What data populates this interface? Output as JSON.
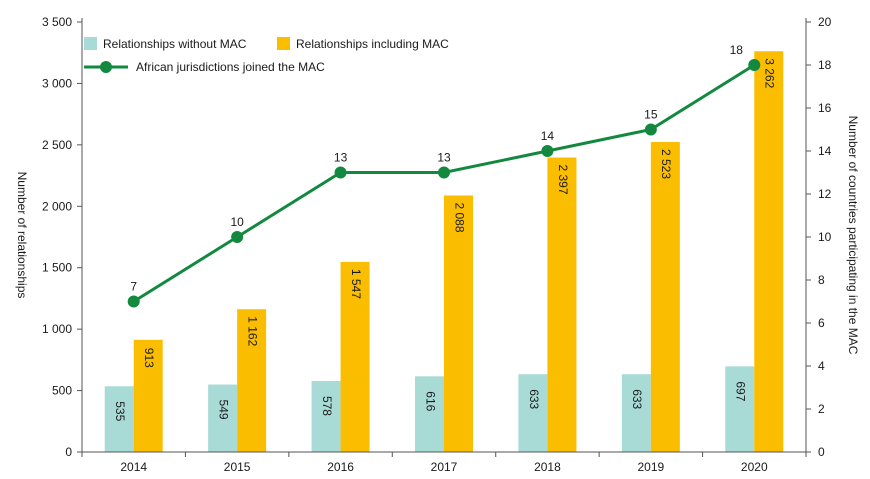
{
  "chart_data": {
    "type": "bar",
    "categories": [
      "2014",
      "2015",
      "2016",
      "2017",
      "2018",
      "2019",
      "2020"
    ],
    "series": [
      {
        "name": "Relationships without MAC",
        "type": "bar",
        "axis": "left",
        "color": "#a8dad6",
        "values": [
          535,
          549,
          578,
          616,
          633,
          633,
          697
        ],
        "labels": [
          "535",
          "549",
          "578",
          "616",
          "633",
          "633",
          "697"
        ]
      },
      {
        "name": "Relationships including MAC",
        "type": "bar",
        "axis": "left",
        "color": "#fbbd00",
        "values": [
          913,
          1162,
          1547,
          2088,
          2397,
          2523,
          3262
        ],
        "labels": [
          "913",
          "1 162",
          "1 547",
          "2 088",
          "2 397",
          "2 523",
          "3 262"
        ]
      },
      {
        "name": "African jurisdictions joined the MAC",
        "type": "line",
        "axis": "right",
        "color": "#13893f",
        "values": [
          7,
          10,
          13,
          13,
          14,
          15,
          18
        ],
        "labels": [
          "7",
          "10",
          "13",
          "13",
          "14",
          "15",
          "18"
        ]
      }
    ],
    "y_left": {
      "label": "Number of relationships",
      "range": [
        0,
        3500
      ],
      "ticks": [
        0,
        500,
        1000,
        1500,
        2000,
        2500,
        3000,
        3500
      ],
      "tick_labels": [
        "0",
        "500",
        "1 000",
        "1 500",
        "2 000",
        "2 500",
        "3 000",
        "3 500"
      ]
    },
    "y_right": {
      "label": "Number of countries participating in the MAC",
      "range": [
        0,
        20
      ],
      "ticks": [
        0,
        2,
        4,
        6,
        8,
        10,
        12,
        14,
        16,
        18,
        20
      ],
      "tick_labels": [
        "0",
        "2",
        "4",
        "6",
        "8",
        "10",
        "12",
        "14",
        "16",
        "18",
        "20"
      ]
    },
    "grid": false,
    "legend_position": "top-left"
  }
}
